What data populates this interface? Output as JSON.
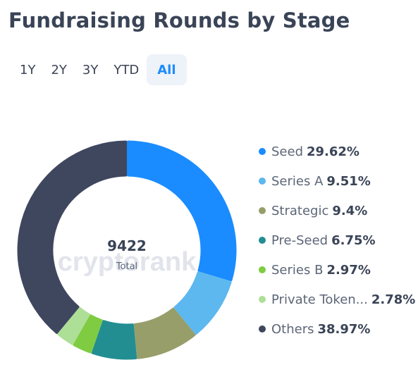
{
  "title": "Fundraising Rounds by Stage",
  "ranges": [
    {
      "label": "1Y",
      "active": false
    },
    {
      "label": "2Y",
      "active": false
    },
    {
      "label": "3Y",
      "active": false
    },
    {
      "label": "YTD",
      "active": false
    },
    {
      "label": "All",
      "active": true
    }
  ],
  "center": {
    "value": "9422",
    "label": "Total"
  },
  "watermark": "cryptorank",
  "chart_data": {
    "type": "pie",
    "style": "donut",
    "total": 9422,
    "slices": [
      {
        "name": "Seed",
        "display_name": "Seed",
        "percent_label": "29.62%",
        "value": 29.62,
        "color": "#1a8cff"
      },
      {
        "name": "Series A",
        "display_name": "Series A",
        "percent_label": "9.51%",
        "value": 9.51,
        "color": "#5cb8ee"
      },
      {
        "name": "Strategic",
        "display_name": "Strategic",
        "percent_label": "9.4%",
        "value": 9.4,
        "color": "#979e6a"
      },
      {
        "name": "Pre-Seed",
        "display_name": "Pre-Seed",
        "percent_label": "6.75%",
        "value": 6.75,
        "color": "#228e92"
      },
      {
        "name": "Series B",
        "display_name": "Series B",
        "percent_label": "2.97%",
        "value": 2.97,
        "color": "#7fcc43"
      },
      {
        "name": "Private Token Sale",
        "display_name": "Private Token...",
        "percent_label": "2.78%",
        "value": 2.78,
        "color": "#addf97"
      },
      {
        "name": "Others",
        "display_name": "Others",
        "percent_label": "38.97%",
        "value": 38.97,
        "color": "#3f475f"
      }
    ],
    "legend_position": "right"
  }
}
